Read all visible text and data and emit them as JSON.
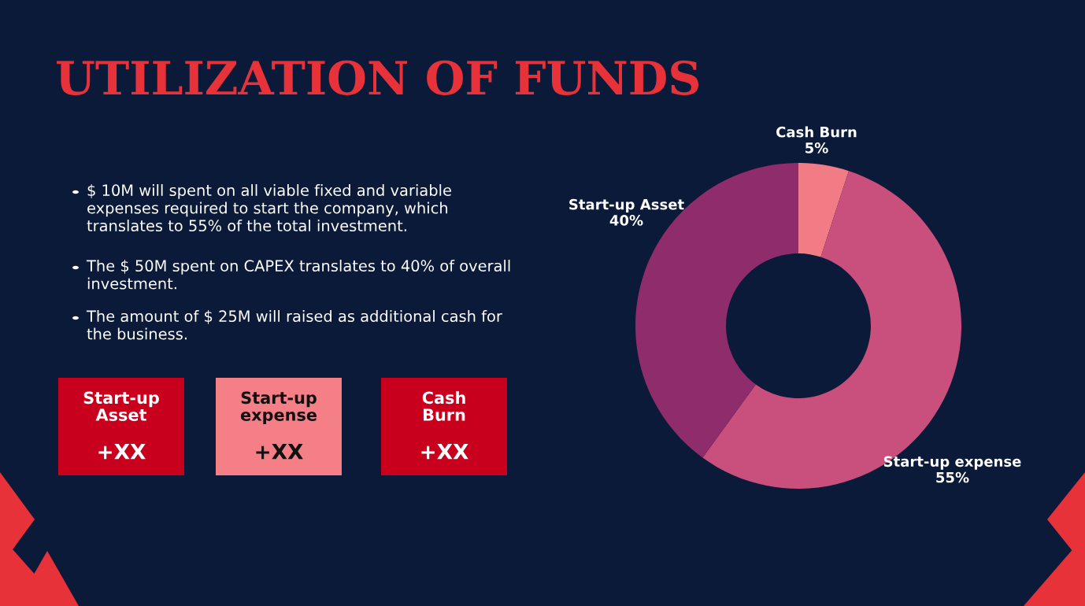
{
  "chart_data": {
    "type": "donut",
    "title": "UTILIZATION OF FUNDS",
    "categories": [
      "Cash Burn",
      "Start-up expense",
      "Start-up Asset"
    ],
    "values": [
      5,
      55,
      40
    ],
    "colors": [
      "#f27c86",
      "#c94f7c",
      "#8e2c6c"
    ],
    "value_labels": [
      "5%",
      "55%",
      "40%"
    ],
    "legend": false,
    "annotations": [
      "$ 10M will spent on all viable fixed and variable\nexpenses required to start the company, which\ntranslates to 55% of the total investment.",
      "The $ 50M spent on CAPEX translates to 40% of overall\ninvestment.",
      "The amount of $ 25M will raised as additional cash for\nthe business.",
      "Start-up\nAsset",
      "+XX",
      "Start-up\nexpense",
      "+XX",
      "Cash\nBurn",
      "+XX"
    ]
  }
}
